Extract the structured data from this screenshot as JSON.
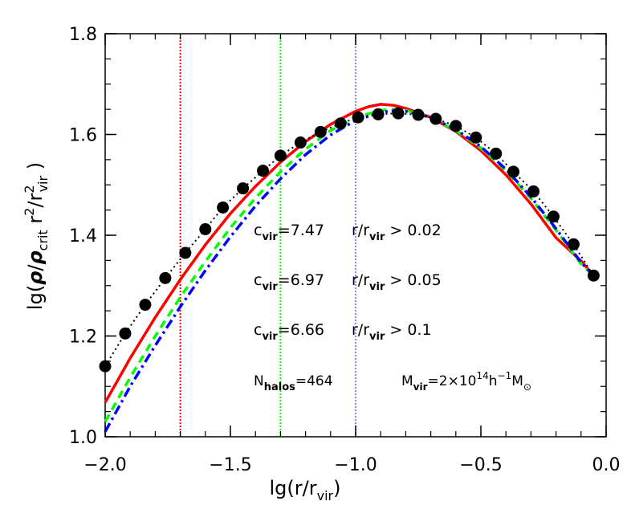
{
  "chart_data": {
    "type": "line",
    "title": "",
    "xlabel": {
      "main": "lg(r/r",
      "sub": "vir",
      "close": ")"
    },
    "ylabel": {
      "pre": "lg(",
      "rho": "ρ",
      "slash": "/",
      "rho2": "ρ",
      "crit": "crit",
      "r2": "  r",
      "sup2": "2",
      "slash2": "/r",
      "sup3": "2",
      "vir": "vir",
      "close": " )"
    },
    "xlim": [
      -2.0,
      0.0
    ],
    "ylim": [
      1.0,
      1.8
    ],
    "xticks": [
      -2.0,
      -1.5,
      -1.0,
      -0.5,
      0.0
    ],
    "xtick_labels": [
      "−2.0",
      "−1.5",
      "−1.0",
      "−0.5",
      "0.0"
    ],
    "yticks": [
      1.0,
      1.2,
      1.4,
      1.6,
      1.8
    ],
    "ytick_labels": [
      "1.0",
      "1.2",
      "1.4",
      "1.6",
      "1.8"
    ],
    "grid": false,
    "colors": {
      "red": "#ff0000",
      "green": "#00ff00",
      "blue": "#0000ff",
      "lightblue": "#8888ff",
      "black": "#000000"
    },
    "vertical_lines": [
      {
        "x": -1.7,
        "color": "#ff0000"
      },
      {
        "x": -1.3,
        "color": "#00ff00"
      },
      {
        "x": -1.0,
        "color": "#8888ff"
      }
    ],
    "points": {
      "x": [
        -2.0,
        -1.92,
        -1.84,
        -1.76,
        -1.68,
        -1.6,
        -1.53,
        -1.45,
        -1.37,
        -1.3,
        -1.22,
        -1.14,
        -1.06,
        -0.99,
        -0.91,
        -0.83,
        -0.75,
        -0.68,
        -0.6,
        -0.52,
        -0.44,
        -0.37,
        -0.29,
        -0.21,
        -0.13,
        -0.05
      ],
      "y": [
        1.14,
        1.205,
        1.262,
        1.315,
        1.365,
        1.412,
        1.455,
        1.493,
        1.528,
        1.558,
        1.584,
        1.605,
        1.622,
        1.634,
        1.64,
        1.642,
        1.639,
        1.631,
        1.617,
        1.594,
        1.562,
        1.526,
        1.487,
        1.437,
        1.382,
        1.32
      ]
    },
    "series": [
      {
        "color": "#ff0000",
        "dash": "solid",
        "width": 3.5,
        "x": [
          -2.0,
          -1.9,
          -1.8,
          -1.7,
          -1.6,
          -1.5,
          -1.4,
          -1.3,
          -1.2,
          -1.1,
          -1.0,
          -0.95,
          -0.9,
          -0.85,
          -0.8,
          -0.7,
          -0.6,
          -0.5,
          -0.4,
          -0.3,
          -0.2,
          -0.1,
          -0.05
        ],
        "y": [
          1.068,
          1.156,
          1.237,
          1.312,
          1.381,
          1.443,
          1.497,
          1.545,
          1.586,
          1.62,
          1.646,
          1.655,
          1.66,
          1.658,
          1.652,
          1.634,
          1.606,
          1.568,
          1.52,
          1.462,
          1.395,
          1.349,
          1.32
        ]
      },
      {
        "color": "#00ff00",
        "dash": "10,7",
        "width": 3.5,
        "x": [
          -2.0,
          -1.9,
          -1.8,
          -1.7,
          -1.6,
          -1.5,
          -1.4,
          -1.3,
          -1.2,
          -1.1,
          -1.0,
          -0.9,
          -0.85,
          -0.8,
          -0.7,
          -0.6,
          -0.5,
          -0.4,
          -0.3,
          -0.2,
          -0.1,
          -0.05
        ],
        "y": [
          1.03,
          1.118,
          1.2,
          1.277,
          1.348,
          1.415,
          1.474,
          1.526,
          1.571,
          1.608,
          1.634,
          1.648,
          1.65,
          1.648,
          1.634,
          1.608,
          1.573,
          1.528,
          1.473,
          1.41,
          1.343,
          1.32
        ]
      },
      {
        "color": "#0000ff",
        "dash": "12,5,3,5",
        "width": 3.5,
        "x": [
          -2.0,
          -1.9,
          -1.8,
          -1.7,
          -1.6,
          -1.5,
          -1.4,
          -1.3,
          -1.2,
          -1.1,
          -1.0,
          -0.9,
          -0.85,
          -0.8,
          -0.7,
          -0.6,
          -0.5,
          -0.4,
          -0.3,
          -0.2,
          -0.1,
          -0.05
        ],
        "y": [
          1.01,
          1.1,
          1.181,
          1.258,
          1.33,
          1.397,
          1.458,
          1.512,
          1.56,
          1.599,
          1.628,
          1.644,
          1.647,
          1.646,
          1.634,
          1.61,
          1.576,
          1.531,
          1.476,
          1.413,
          1.346,
          1.32
        ]
      },
      {
        "color": "#000000",
        "dash": "2,4",
        "width": 2,
        "x": [
          -2.0,
          -1.92,
          -1.84,
          -1.76,
          -1.68,
          -1.6,
          -1.53,
          -1.45,
          -1.37,
          -1.3,
          -1.22,
          -1.14,
          -1.06,
          -0.99,
          -0.91,
          -0.83,
          -0.75,
          -0.68,
          -0.6,
          -0.52,
          -0.44,
          -0.37,
          -0.29,
          -0.21,
          -0.13,
          -0.05
        ],
        "y": [
          1.14,
          1.205,
          1.262,
          1.315,
          1.365,
          1.412,
          1.455,
          1.493,
          1.528,
          1.558,
          1.584,
          1.605,
          1.622,
          1.634,
          1.64,
          1.642,
          1.639,
          1.631,
          1.617,
          1.594,
          1.562,
          1.526,
          1.487,
          1.437,
          1.382,
          1.32
        ]
      }
    ],
    "annotations": [
      {
        "c_main": "c",
        "c_sub": "vir",
        "c_val": "=7.47",
        "r_main": "r/r",
        "r_sub": "vir",
        "r_val": " > 0.02",
        "color": "#ff0000"
      },
      {
        "c_main": "c",
        "c_sub": "vir",
        "c_val": "=6.97",
        "r_main": "r/r",
        "r_sub": "vir",
        "r_val": " > 0.05",
        "color": "#00ff00"
      },
      {
        "c_main": "c",
        "c_sub": "vir",
        "c_val": "=6.66",
        "r_main": "r/r",
        "r_sub": "vir",
        "r_val": " > 0.1",
        "color": "#0000ff"
      }
    ],
    "nhalos": {
      "main": "N",
      "sub": "halos",
      "val": "=464"
    },
    "mvir": {
      "main": "M",
      "sub": "vir",
      "eq": "=2×10",
      "sup": "14",
      "h": "h",
      "hsup": "−1",
      "m": "M",
      "msub": "⊙"
    }
  }
}
